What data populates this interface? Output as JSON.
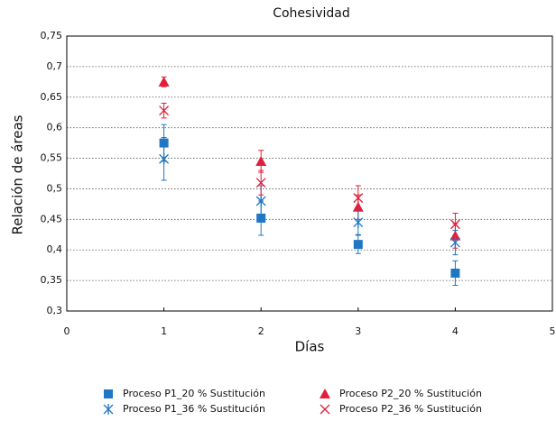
{
  "chart_data": {
    "type": "scatter",
    "title": "Cohesividad",
    "x_label": "Días",
    "y_label": "Relación de áreas",
    "xlim": [
      0,
      5
    ],
    "xticks": [
      0,
      1,
      2,
      3,
      4,
      5
    ],
    "ylim": [
      0.3,
      0.75
    ],
    "yticks": [
      {
        "value": 0.3,
        "label": "0,3"
      },
      {
        "value": 0.35,
        "label": "0,35"
      },
      {
        "value": 0.4,
        "label": "0,4"
      },
      {
        "value": 0.45,
        "label": "0,45"
      },
      {
        "value": 0.5,
        "label": "0,5"
      },
      {
        "value": 0.55,
        "label": "0,55"
      },
      {
        "value": 0.6,
        "label": "0,6"
      },
      {
        "value": 0.65,
        "label": "0,65"
      },
      {
        "value": 0.7,
        "label": "0,7"
      },
      {
        "value": 0.75,
        "label": "0,75"
      }
    ],
    "grid": true,
    "series": [
      {
        "name": "Proceso P1_20 % Sustitución",
        "color": "#1f77c4",
        "marker": "square",
        "x": [
          1,
          2,
          3,
          4
        ],
        "values": [
          0.575,
          0.452,
          0.409,
          0.362
        ],
        "errors": [
          0.03,
          0.028,
          0.015,
          0.02
        ]
      },
      {
        "name": "Proceso P2_20 % Sustitución",
        "color": "#e0203c",
        "marker": "triangle",
        "x": [
          1,
          2,
          3,
          4
        ],
        "values": [
          0.675,
          0.545,
          0.47,
          0.423
        ],
        "errors": [
          0.008,
          0.018,
          0.02,
          0.02
        ]
      },
      {
        "name": "Proceso P1_36 % Sustitución",
        "color": "#1f77c4",
        "marker": "asterisk",
        "x": [
          1,
          2,
          3,
          4
        ],
        "values": [
          0.549,
          0.48,
          0.445,
          0.412
        ],
        "errors": [
          0.035,
          0.025,
          0.02,
          0.02
        ]
      },
      {
        "name": "Proceso P2_36 % Sustitución",
        "color": "#e0203c",
        "marker": "cross",
        "x": [
          1,
          2,
          3,
          4
        ],
        "values": [
          0.628,
          0.51,
          0.485,
          0.442
        ],
        "errors": [
          0.012,
          0.02,
          0.02,
          0.018
        ]
      }
    ]
  }
}
